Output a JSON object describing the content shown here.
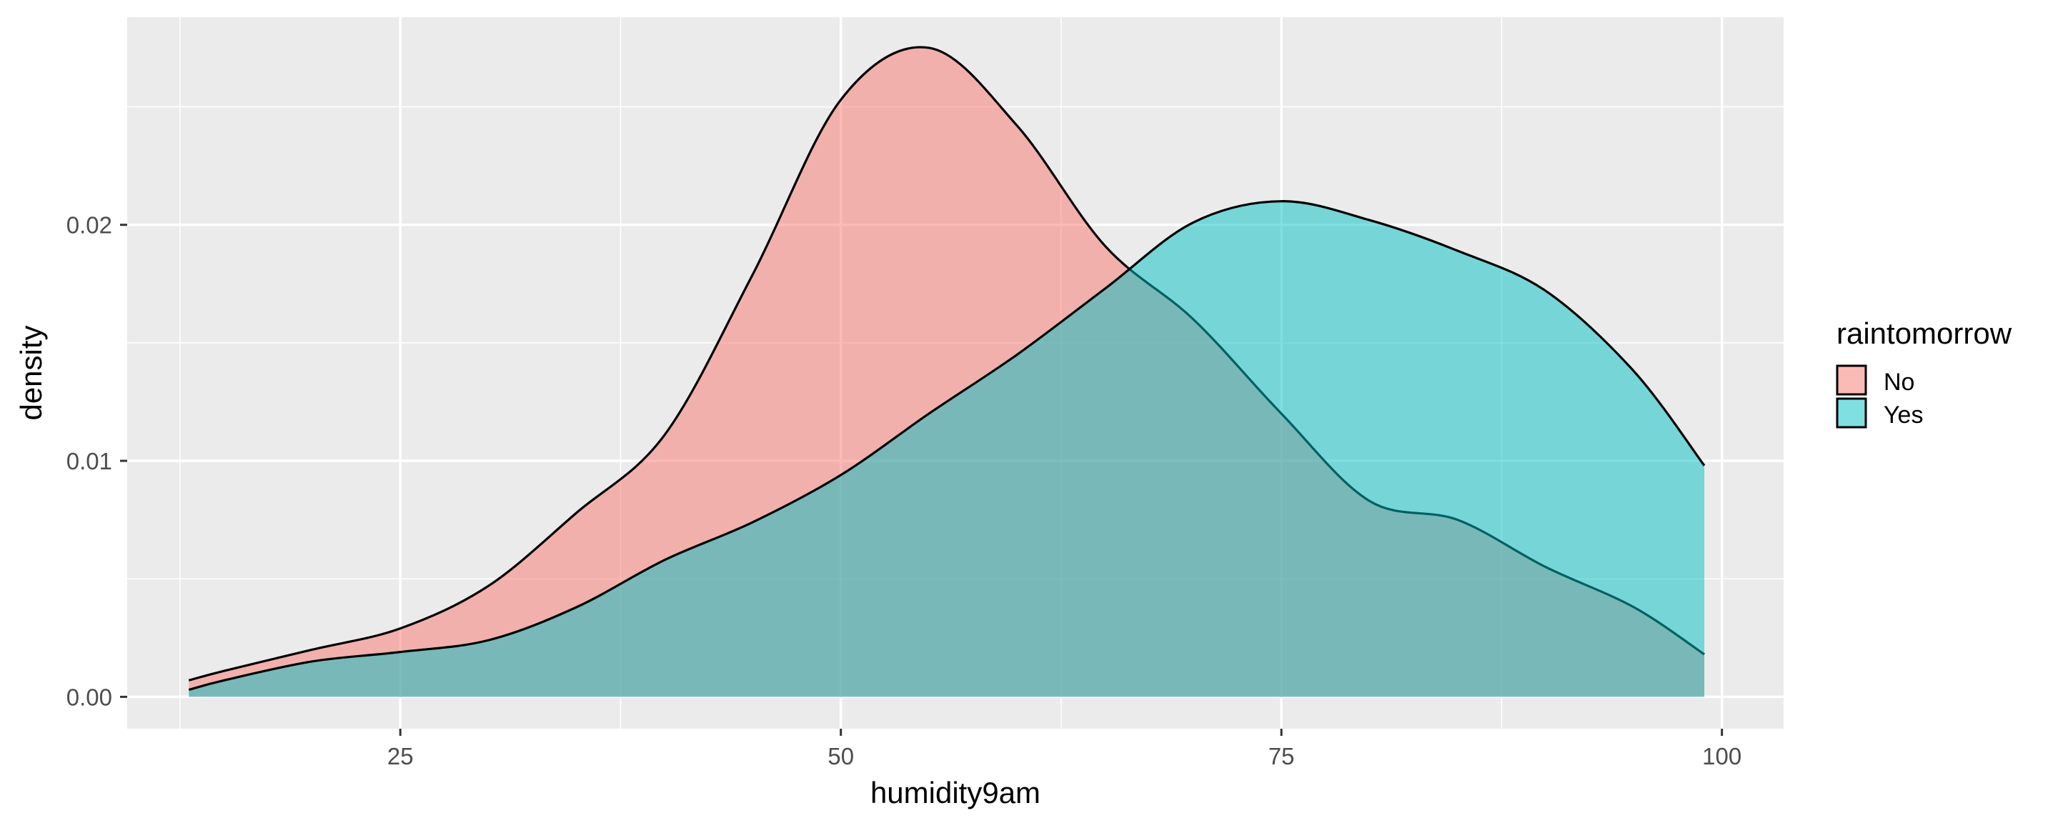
{
  "chart_data": {
    "type": "area",
    "xlabel": "humidity9am",
    "ylabel": "density",
    "xlim": [
      9.5,
      103.5
    ],
    "ylim": [
      -0.00135,
      0.0288
    ],
    "x_ticks": [
      25,
      50,
      75,
      100
    ],
    "x_tick_labels": [
      "25",
      "50",
      "75",
      "100"
    ],
    "y_ticks": [
      0.0,
      0.01,
      0.02
    ],
    "y_tick_labels": [
      "0.00",
      "0.01",
      "0.02"
    ],
    "grid": true,
    "legend": {
      "title": "raintomorrow",
      "placement": "right"
    },
    "series": [
      {
        "name": "No",
        "color": "#F8766D",
        "x": [
          13,
          15,
          20,
          25,
          30,
          35,
          40,
          45,
          50,
          55,
          60,
          65,
          70,
          75,
          80,
          85,
          90,
          95,
          99
        ],
        "y": [
          0.0007,
          0.0011,
          0.002,
          0.0029,
          0.0047,
          0.0078,
          0.0111,
          0.0179,
          0.0253,
          0.0275,
          0.0242,
          0.0191,
          0.016,
          0.012,
          0.0083,
          0.0075,
          0.0055,
          0.0038,
          0.0018
        ]
      },
      {
        "name": "Yes",
        "color": "#00BFC4",
        "x": [
          13,
          15,
          20,
          25,
          30,
          35,
          40,
          45,
          50,
          55,
          60,
          65,
          70,
          75,
          80,
          85,
          90,
          95,
          99
        ],
        "y": [
          0.0003,
          0.0007,
          0.0015,
          0.0019,
          0.0024,
          0.0038,
          0.0058,
          0.0074,
          0.0094,
          0.012,
          0.0145,
          0.0173,
          0.0201,
          0.021,
          0.0202,
          0.0189,
          0.0172,
          0.0138,
          0.0098
        ]
      }
    ]
  }
}
